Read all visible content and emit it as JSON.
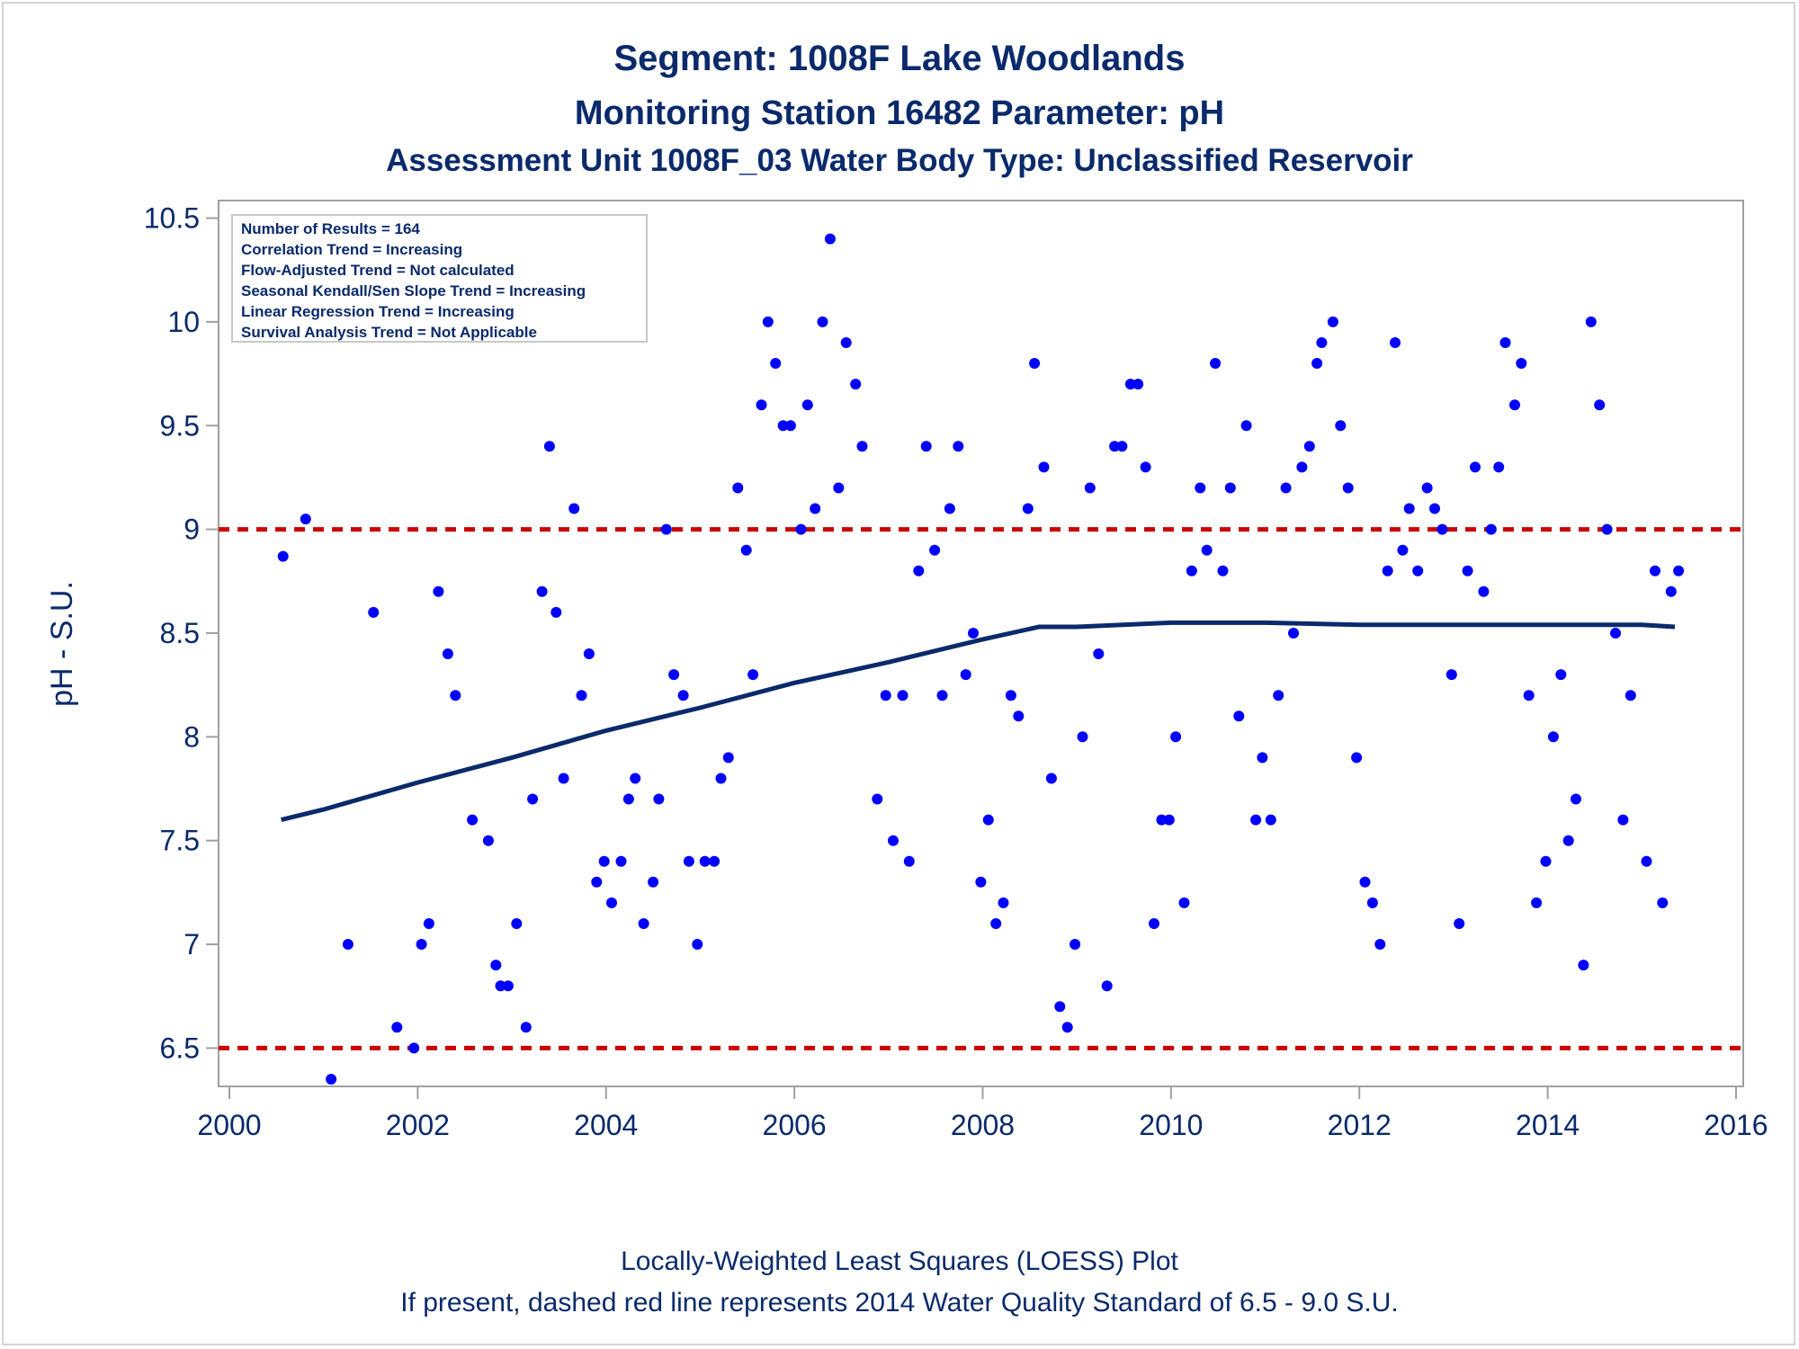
{
  "titles": {
    "line1": "Segment: 1008F  Lake Woodlands",
    "line2": "Monitoring Station 16482 Parameter: pH",
    "line3": "Assessment Unit 1008F_03   Water Body Type: Unclassified Reservoir"
  },
  "info_box": [
    "Number of Results = 164",
    "Correlation Trend = Increasing",
    "Flow-Adjusted Trend = Not calculated",
    "Seasonal Kendall/Sen Slope Trend = Increasing",
    "Linear Regression Trend = Increasing",
    "Survival Analysis Trend = Not Applicable"
  ],
  "footnotes": {
    "line1": "Locally-Weighted Least Squares (LOESS) Plot",
    "line2": "If present, dashed red line represents 2014 Water Quality Standard of 6.5 - 9.0 S.U."
  },
  "colors": {
    "text": "#0a2a6b",
    "points": "#0000ff",
    "loess": "#0a2a6b",
    "standard": "#cc0000",
    "frame": "#a0a0a0"
  },
  "chart_data": {
    "type": "scatter",
    "ylabel": "pH - S.U.",
    "xlabel": "",
    "xlim": [
      2000,
      2016
    ],
    "ylim": [
      6.35,
      10.55
    ],
    "xticks": [
      "2000",
      "2002",
      "2004",
      "2006",
      "2008",
      "2010",
      "2012",
      "2014",
      "2016"
    ],
    "yticks": [
      "6.5",
      "7",
      "7.5",
      "8",
      "8.5",
      "9",
      "9.5",
      "10",
      "10.5"
    ],
    "reference_lines": [
      6.5,
      9.0
    ],
    "loess": [
      [
        2000.55,
        7.6
      ],
      [
        2001.0,
        7.65
      ],
      [
        2002.0,
        7.78
      ],
      [
        2003.0,
        7.9
      ],
      [
        2004.0,
        8.03
      ],
      [
        2005.0,
        8.14
      ],
      [
        2006.0,
        8.26
      ],
      [
        2007.0,
        8.36
      ],
      [
        2008.0,
        8.47
      ],
      [
        2008.6,
        8.53
      ],
      [
        2009.0,
        8.53
      ],
      [
        2010.0,
        8.55
      ],
      [
        2011.0,
        8.55
      ],
      [
        2012.0,
        8.54
      ],
      [
        2013.0,
        8.54
      ],
      [
        2014.0,
        8.54
      ],
      [
        2015.0,
        8.54
      ],
      [
        2015.35,
        8.53
      ]
    ],
    "points": [
      [
        2000.57,
        8.87
      ],
      [
        2000.81,
        9.05
      ],
      [
        2001.08,
        6.35
      ],
      [
        2001.26,
        7.0
      ],
      [
        2001.53,
        8.6
      ],
      [
        2001.78,
        6.6
      ],
      [
        2001.96,
        6.5
      ],
      [
        2002.04,
        7.0
      ],
      [
        2002.12,
        7.1
      ],
      [
        2002.22,
        8.7
      ],
      [
        2002.32,
        8.4
      ],
      [
        2002.4,
        8.2
      ],
      [
        2002.58,
        7.6
      ],
      [
        2002.75,
        7.5
      ],
      [
        2002.83,
        6.9
      ],
      [
        2002.88,
        6.8
      ],
      [
        2002.96,
        6.8
      ],
      [
        2003.05,
        7.1
      ],
      [
        2003.15,
        6.6
      ],
      [
        2003.22,
        7.7
      ],
      [
        2003.32,
        8.7
      ],
      [
        2003.4,
        9.4
      ],
      [
        2003.47,
        8.6
      ],
      [
        2003.55,
        7.8
      ],
      [
        2003.66,
        9.1
      ],
      [
        2003.74,
        8.2
      ],
      [
        2003.82,
        8.4
      ],
      [
        2003.9,
        7.3
      ],
      [
        2003.98,
        7.4
      ],
      [
        2004.06,
        7.2
      ],
      [
        2004.16,
        7.4
      ],
      [
        2004.24,
        7.7
      ],
      [
        2004.31,
        7.8
      ],
      [
        2004.4,
        7.1
      ],
      [
        2004.5,
        7.3
      ],
      [
        2004.56,
        7.7
      ],
      [
        2004.64,
        9.0
      ],
      [
        2004.72,
        8.3
      ],
      [
        2004.82,
        8.2
      ],
      [
        2004.88,
        7.4
      ],
      [
        2004.97,
        7.0
      ],
      [
        2005.05,
        7.4
      ],
      [
        2005.15,
        7.4
      ],
      [
        2005.22,
        7.8
      ],
      [
        2005.3,
        7.9
      ],
      [
        2005.4,
        9.2
      ],
      [
        2005.49,
        8.9
      ],
      [
        2005.56,
        8.3
      ],
      [
        2005.65,
        9.6
      ],
      [
        2005.72,
        10.0
      ],
      [
        2005.8,
        9.8
      ],
      [
        2005.88,
        9.5
      ],
      [
        2005.96,
        9.5
      ],
      [
        2006.07,
        9.0
      ],
      [
        2006.14,
        9.6
      ],
      [
        2006.22,
        9.1
      ],
      [
        2006.3,
        10.0
      ],
      [
        2006.38,
        10.4
      ],
      [
        2006.47,
        9.2
      ],
      [
        2006.55,
        9.9
      ],
      [
        2006.65,
        9.7
      ],
      [
        2006.72,
        9.4
      ],
      [
        2006.88,
        7.7
      ],
      [
        2006.97,
        8.2
      ],
      [
        2007.05,
        7.5
      ],
      [
        2007.15,
        8.2
      ],
      [
        2007.22,
        7.4
      ],
      [
        2007.32,
        8.8
      ],
      [
        2007.4,
        9.4
      ],
      [
        2007.49,
        8.9
      ],
      [
        2007.57,
        8.2
      ],
      [
        2007.65,
        9.1
      ],
      [
        2007.74,
        9.4
      ],
      [
        2007.82,
        8.3
      ],
      [
        2007.9,
        8.5
      ],
      [
        2007.98,
        7.3
      ],
      [
        2008.06,
        7.6
      ],
      [
        2008.14,
        7.1
      ],
      [
        2008.22,
        7.2
      ],
      [
        2008.3,
        8.2
      ],
      [
        2008.38,
        8.1
      ],
      [
        2008.48,
        9.1
      ],
      [
        2008.55,
        9.8
      ],
      [
        2008.65,
        9.3
      ],
      [
        2008.73,
        7.8
      ],
      [
        2008.82,
        6.7
      ],
      [
        2008.9,
        6.6
      ],
      [
        2008.98,
        7.0
      ],
      [
        2009.06,
        8.0
      ],
      [
        2009.14,
        9.2
      ],
      [
        2009.23,
        8.4
      ],
      [
        2009.32,
        6.8
      ],
      [
        2009.4,
        9.4
      ],
      [
        2009.48,
        9.4
      ],
      [
        2009.57,
        9.7
      ],
      [
        2009.65,
        9.7
      ],
      [
        2009.73,
        9.3
      ],
      [
        2009.82,
        7.1
      ],
      [
        2009.9,
        7.6
      ],
      [
        2009.98,
        7.6
      ],
      [
        2010.05,
        8.0
      ],
      [
        2010.14,
        7.2
      ],
      [
        2010.22,
        8.8
      ],
      [
        2010.31,
        9.2
      ],
      [
        2010.38,
        8.9
      ],
      [
        2010.47,
        9.8
      ],
      [
        2010.55,
        8.8
      ],
      [
        2010.63,
        9.2
      ],
      [
        2010.72,
        8.1
      ],
      [
        2010.8,
        9.5
      ],
      [
        2010.9,
        7.6
      ],
      [
        2010.97,
        7.9
      ],
      [
        2011.06,
        7.6
      ],
      [
        2011.14,
        8.2
      ],
      [
        2011.22,
        9.2
      ],
      [
        2011.3,
        8.5
      ],
      [
        2011.39,
        9.3
      ],
      [
        2011.47,
        9.4
      ],
      [
        2011.55,
        9.8
      ],
      [
        2011.6,
        9.9
      ],
      [
        2011.72,
        10.0
      ],
      [
        2011.8,
        9.5
      ],
      [
        2011.88,
        9.2
      ],
      [
        2011.97,
        7.9
      ],
      [
        2012.06,
        7.3
      ],
      [
        2012.14,
        7.2
      ],
      [
        2012.22,
        7.0
      ],
      [
        2012.3,
        8.8
      ],
      [
        2012.38,
        9.9
      ],
      [
        2012.46,
        8.9
      ],
      [
        2012.53,
        9.1
      ],
      [
        2012.62,
        8.8
      ],
      [
        2012.72,
        9.2
      ],
      [
        2012.8,
        9.1
      ],
      [
        2012.88,
        9.0
      ],
      [
        2012.98,
        8.3
      ],
      [
        2013.06,
        7.1
      ],
      [
        2013.15,
        8.8
      ],
      [
        2013.23,
        9.3
      ],
      [
        2013.32,
        8.7
      ],
      [
        2013.4,
        9.0
      ],
      [
        2013.48,
        9.3
      ],
      [
        2013.55,
        9.9
      ],
      [
        2013.65,
        9.6
      ],
      [
        2013.72,
        9.8
      ],
      [
        2013.8,
        8.2
      ],
      [
        2013.88,
        7.2
      ],
      [
        2013.98,
        7.4
      ],
      [
        2014.06,
        8.0
      ],
      [
        2014.14,
        8.3
      ],
      [
        2014.22,
        7.5
      ],
      [
        2014.3,
        7.7
      ],
      [
        2014.38,
        6.9
      ],
      [
        2014.46,
        10.0
      ],
      [
        2014.55,
        9.6
      ],
      [
        2014.63,
        9.0
      ],
      [
        2014.72,
        8.5
      ],
      [
        2014.8,
        7.6
      ],
      [
        2014.88,
        8.2
      ],
      [
        2015.05,
        7.4
      ],
      [
        2015.14,
        8.8
      ],
      [
        2015.22,
        7.2
      ],
      [
        2015.31,
        8.7
      ],
      [
        2015.39,
        8.8
      ]
    ]
  }
}
